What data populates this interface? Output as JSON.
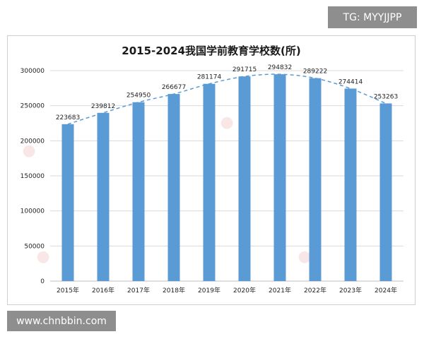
{
  "badges": {
    "top_right": "TG: MYYJJPP",
    "bottom_left": "www.chnbbin.com"
  },
  "colors": {
    "bar": "#5b9bd5",
    "trend": "#5b9bd5",
    "grid": "#d9d9d9"
  },
  "chart_data": {
    "type": "bar",
    "title": "2015-2024我国学前教育学校数(所)",
    "xlabel": "",
    "ylabel": "",
    "categories": [
      "2015年",
      "2016年",
      "2017年",
      "2018年",
      "2019年",
      "2020年",
      "2021年",
      "2022年",
      "2023年",
      "2024年"
    ],
    "values": [
      223683,
      239812,
      254950,
      266677,
      281174,
      291715,
      294832,
      289222,
      274414,
      253263
    ],
    "ylim": [
      0,
      300000
    ],
    "yticks": [
      0,
      50000,
      100000,
      150000,
      200000,
      250000,
      300000
    ],
    "yticklabels": [
      "0",
      "50000",
      "100000",
      "150000",
      "200000",
      "250000",
      "300000"
    ],
    "data_labels": [
      "223683",
      "239812",
      "254950",
      "266677",
      "281174",
      "291715",
      "294832",
      "289222",
      "274414",
      "253263"
    ],
    "grid": true,
    "trendline": "dashed"
  }
}
